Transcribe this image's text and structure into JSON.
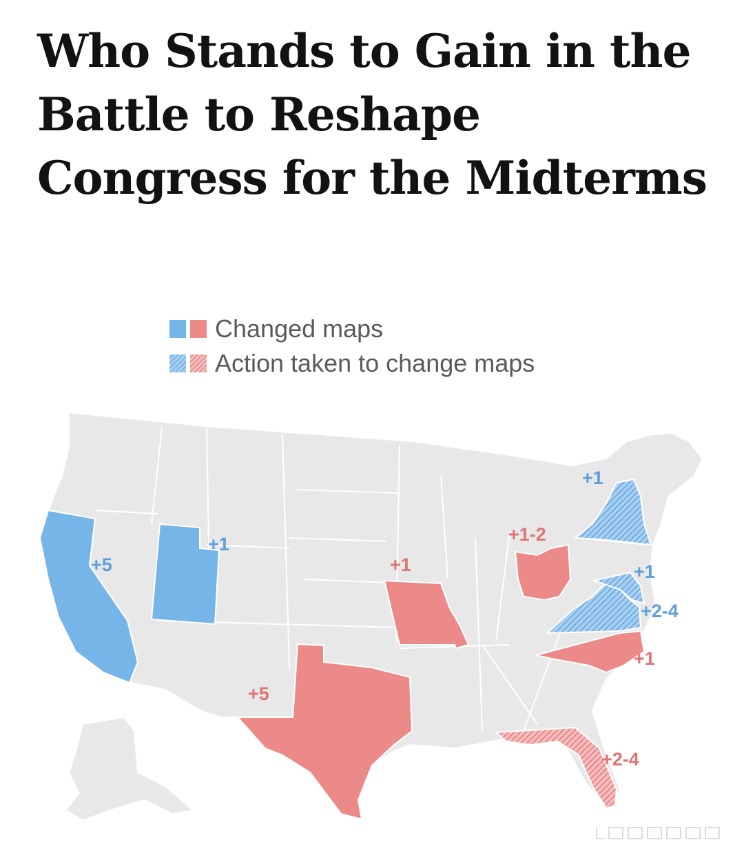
{
  "headline": "Who Stands to Gain in the Battle to Reshape Congress for the Midterms",
  "legend": {
    "changed": "Changed maps",
    "action": "Action taken to change maps"
  },
  "colors": {
    "democrat": "#75b5e8",
    "republican": "#ec8a8a",
    "neutral": "#e8e8e8",
    "border": "#ffffff",
    "democrat_label": "#5e9fdb",
    "republican_label": "#e07373"
  },
  "states": {
    "california": {
      "party": "democrat",
      "status": "changed",
      "label": "+5"
    },
    "utah": {
      "party": "democrat",
      "status": "changed",
      "label": "+1"
    },
    "new_york": {
      "party": "democrat",
      "status": "action",
      "label": "+1"
    },
    "maryland": {
      "party": "democrat",
      "status": "action",
      "label": "+1"
    },
    "virginia": {
      "party": "democrat",
      "status": "action",
      "label": "+2-4"
    },
    "texas": {
      "party": "republican",
      "status": "changed",
      "label": "+5"
    },
    "missouri": {
      "party": "republican",
      "status": "changed",
      "label": "+1"
    },
    "ohio": {
      "party": "republican",
      "status": "changed",
      "label": "+1-2"
    },
    "north_carolina": {
      "party": "republican",
      "status": "changed",
      "label": "+1"
    },
    "florida": {
      "party": "republican",
      "status": "action",
      "label": "+2-4"
    }
  }
}
